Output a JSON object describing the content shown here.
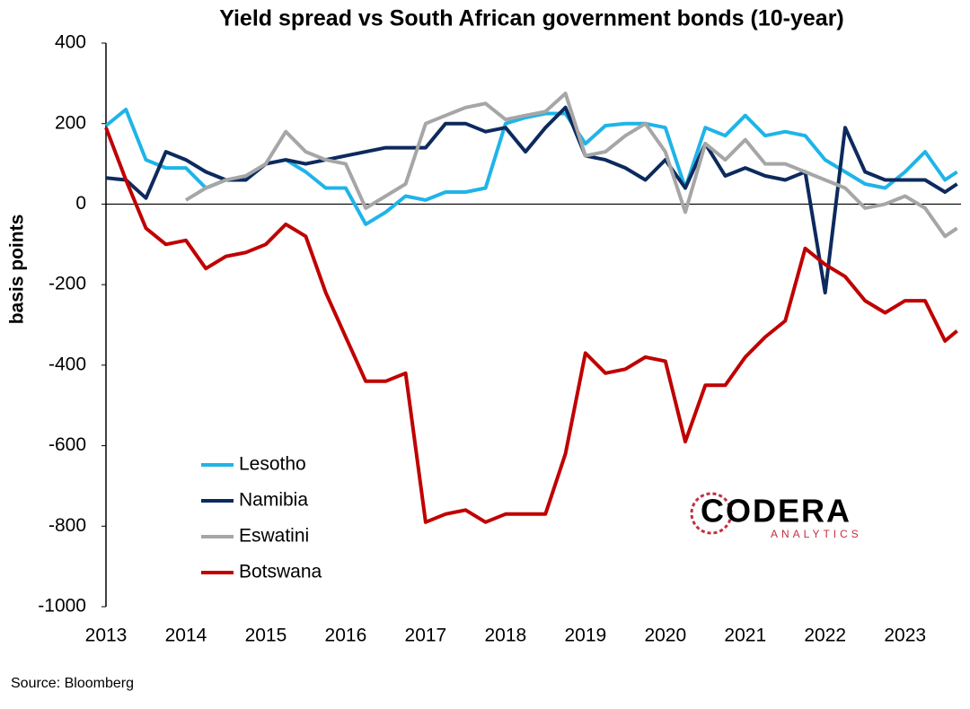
{
  "chart_data": {
    "type": "line",
    "title": "Yield spread vs South African government bonds (10-year)",
    "y_label": "basis points",
    "source": "Source: Bloomberg",
    "logo": {
      "name": "CODERA",
      "tagline": "ANALYTICS"
    },
    "x": [
      2013,
      2013.25,
      2013.5,
      2013.75,
      2014,
      2014.25,
      2014.5,
      2014.75,
      2015,
      2015.25,
      2015.5,
      2015.75,
      2016,
      2016.25,
      2016.5,
      2016.75,
      2017,
      2017.25,
      2017.5,
      2017.75,
      2018,
      2018.25,
      2018.5,
      2018.75,
      2019,
      2019.25,
      2019.5,
      2019.75,
      2020,
      2020.25,
      2020.5,
      2020.75,
      2021,
      2021.25,
      2021.5,
      2021.75,
      2022,
      2022.25,
      2022.5,
      2022.75,
      2023,
      2023.25,
      2023.5,
      2023.65
    ],
    "xlim": [
      2013,
      2023.7
    ],
    "xticks": [
      2013,
      2014,
      2015,
      2016,
      2017,
      2018,
      2019,
      2020,
      2021,
      2022,
      2023
    ],
    "ylim": [
      -1000,
      400
    ],
    "yticks": [
      -1000,
      -800,
      -600,
      -400,
      -200,
      0,
      200,
      400
    ],
    "legend": "lower left",
    "series": [
      {
        "name": "Lesotho",
        "color": "#1fb4e8",
        "values": [
          195,
          235,
          110,
          90,
          90,
          40,
          60,
          60,
          100,
          110,
          80,
          40,
          40,
          -50,
          -20,
          20,
          10,
          30,
          30,
          40,
          200,
          215,
          225,
          225,
          150,
          195,
          200,
          200,
          190,
          40,
          190,
          170,
          220,
          170,
          180,
          170,
          110,
          80,
          50,
          40,
          80,
          130,
          60,
          80
        ]
      },
      {
        "name": "Namibia",
        "color": "#0d2a5e",
        "values": [
          65,
          60,
          15,
          130,
          110,
          80,
          60,
          60,
          100,
          110,
          100,
          110,
          120,
          130,
          140,
          140,
          140,
          200,
          200,
          180,
          190,
          130,
          190,
          240,
          120,
          110,
          90,
          60,
          110,
          40,
          150,
          70,
          90,
          70,
          60,
          80,
          -220,
          190,
          80,
          60,
          60,
          60,
          30,
          50
        ]
      },
      {
        "name": "Eswatini",
        "color": "#a6a6a6",
        "values": [
          null,
          null,
          null,
          null,
          10,
          40,
          60,
          70,
          100,
          180,
          130,
          110,
          100,
          -10,
          20,
          50,
          200,
          220,
          240,
          250,
          210,
          220,
          230,
          275,
          120,
          130,
          170,
          200,
          130,
          -20,
          150,
          110,
          160,
          100,
          100,
          80,
          60,
          40,
          -10,
          0,
          20,
          -10,
          -80,
          -60
        ]
      },
      {
        "name": "Botswana",
        "color": "#c00000",
        "values": [
          190,
          60,
          -60,
          -100,
          -90,
          -160,
          -130,
          -120,
          -100,
          -50,
          -80,
          -220,
          -330,
          -440,
          -440,
          -420,
          -790,
          -770,
          -760,
          -790,
          -770,
          -770,
          -770,
          -620,
          -370,
          -420,
          -410,
          -380,
          -390,
          -590,
          -450,
          -450,
          -380,
          -330,
          -290,
          -110,
          -150,
          -180,
          -240,
          -270,
          -240,
          -240,
          -340,
          -315
        ]
      }
    ]
  }
}
